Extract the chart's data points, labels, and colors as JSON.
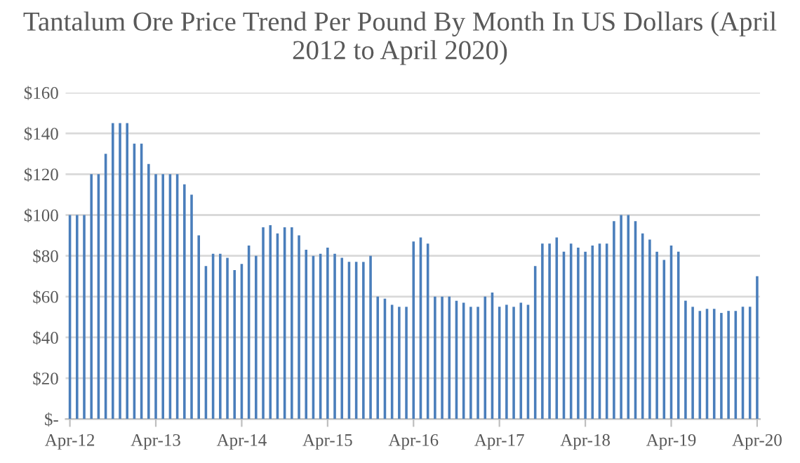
{
  "chart_data": {
    "type": "bar",
    "title": "Tantalum Ore Price Trend Per Pound By Month In US Dollars (April 2012 to April 2020)",
    "categories": [
      "Apr-12",
      null,
      null,
      null,
      null,
      null,
      null,
      null,
      null,
      null,
      null,
      null,
      "Apr-13",
      null,
      null,
      null,
      null,
      null,
      null,
      null,
      null,
      null,
      null,
      null,
      "Apr-14",
      null,
      null,
      null,
      null,
      null,
      null,
      null,
      null,
      null,
      null,
      null,
      "Apr-15",
      null,
      null,
      null,
      null,
      null,
      null,
      null,
      null,
      null,
      null,
      null,
      "Apr-16",
      null,
      null,
      null,
      null,
      null,
      null,
      null,
      null,
      null,
      null,
      null,
      "Apr-17",
      null,
      null,
      null,
      null,
      null,
      null,
      null,
      null,
      null,
      null,
      null,
      "Apr-18",
      null,
      null,
      null,
      null,
      null,
      null,
      null,
      null,
      null,
      null,
      null,
      "Apr-19",
      null,
      null,
      null,
      null,
      null,
      null,
      null,
      null,
      null,
      null,
      null,
      "Apr-20"
    ],
    "values": [
      100,
      100,
      100,
      120,
      120,
      130,
      145,
      145,
      145,
      135,
      135,
      125,
      120,
      120,
      120,
      120,
      115,
      110,
      90,
      75,
      81,
      81,
      79,
      73,
      76,
      85,
      80,
      94,
      95,
      91,
      94,
      94,
      90,
      83,
      80,
      81,
      84,
      81,
      79,
      77,
      77,
      77,
      80,
      60,
      59,
      56,
      55,
      55,
      87,
      89,
      86,
      60,
      60,
      60,
      58,
      57,
      55,
      55,
      60,
      62,
      55,
      56,
      55,
      57,
      56,
      75,
      86,
      86,
      89,
      82,
      86,
      84,
      82,
      85,
      86,
      86,
      97,
      100,
      100,
      97,
      91,
      88,
      82,
      78,
      85,
      82,
      58,
      55,
      53,
      54,
      54,
      52,
      53,
      53,
      55,
      55,
      70
    ],
    "color": "#4a7ebb",
    "ylim": [
      0,
      160
    ],
    "yticks": [
      {
        "value": 0,
        "label": "$-"
      },
      {
        "value": 20,
        "label": "$20"
      },
      {
        "value": 40,
        "label": "$40"
      },
      {
        "value": 60,
        "label": "$60"
      },
      {
        "value": 80,
        "label": "$80"
      },
      {
        "value": 100,
        "label": "$100"
      },
      {
        "value": 120,
        "label": "$120"
      },
      {
        "value": 140,
        "label": "$140"
      },
      {
        "value": 160,
        "label": "$160"
      }
    ],
    "grid": "y"
  }
}
